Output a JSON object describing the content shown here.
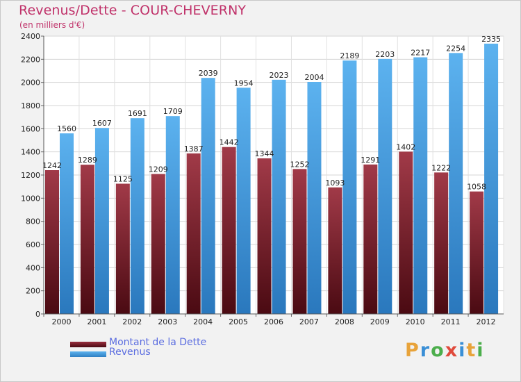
{
  "chart_data": {
    "type": "bar",
    "title": "Revenus/Dette - COUR-CHEVERNY",
    "subtitle": "(en milliers d'€)",
    "categories": [
      "2000",
      "2001",
      "2002",
      "2003",
      "2004",
      "2005",
      "2006",
      "2007",
      "2008",
      "2009",
      "2010",
      "2011",
      "2012"
    ],
    "series": [
      {
        "name": "Montant de la Dette",
        "values": [
          1242,
          1289,
          1125,
          1209,
          1387,
          1442,
          1344,
          1252,
          1093,
          1291,
          1402,
          1222,
          1058
        ],
        "labels": [
          "1242",
          "1289",
          "1125",
          "1209",
          "1387",
          "1442",
          "1344",
          "1252",
          "1093",
          "1291",
          "1402",
          "1222",
          "1058"
        ],
        "color": "#7a1c28"
      },
      {
        "name": "Revenus",
        "values": [
          1560,
          1607,
          1691,
          1709,
          2039,
          1954,
          2023,
          2004,
          2189,
          2203,
          2217,
          2254,
          2335
        ],
        "labels": [
          "1560",
          "1607",
          "1691",
          "1709",
          "2039",
          "1954",
          "2023",
          "2004",
          "2189",
          "2203",
          "2217",
          "2254",
          "2335"
        ],
        "color": "#4aa3e6"
      }
    ],
    "ylim": [
      0,
      2400
    ],
    "yticks": [
      "0",
      "200",
      "400",
      "600",
      "800",
      "1000",
      "1200",
      "1400",
      "1600",
      "1800",
      "2000",
      "2200",
      "2400"
    ],
    "grid": true,
    "legend": "bottom-left"
  },
  "logo": {
    "text": "Proxiti",
    "letters": [
      "P",
      "r",
      "o",
      "x",
      "i",
      "t",
      "i"
    ],
    "colors": [
      "#e8a33a",
      "#3a8fd6",
      "#4cae4c",
      "#e04a3c",
      "#3a8fd6",
      "#e8a33a",
      "#4cae4c"
    ]
  }
}
